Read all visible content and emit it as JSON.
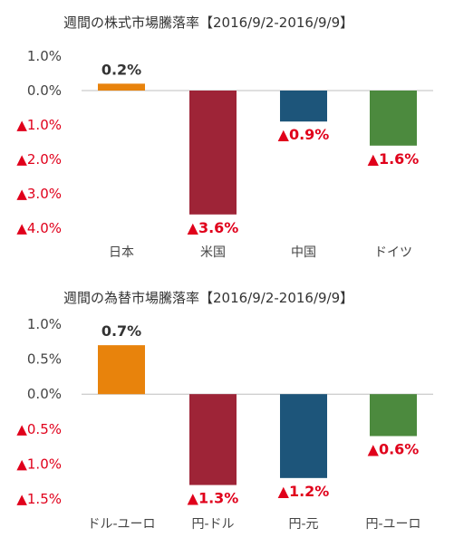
{
  "chart_data": [
    {
      "type": "bar",
      "title": "週間の株式市場騰落率【2016/9/2-2016/9/9】",
      "categories": [
        "日本",
        "米国",
        "中国",
        "ドイツ"
      ],
      "values": [
        0.2,
        -3.6,
        -0.9,
        -1.6
      ],
      "value_labels": [
        "0.2%",
        "▲3.6%",
        "▲0.9%",
        "▲1.6%"
      ],
      "colors": [
        "#E8830C",
        "#9E2437",
        "#1D557A",
        "#4C8A3E"
      ],
      "ylim": [
        -4.0,
        1.0
      ],
      "yticks": [
        1.0,
        0.0,
        -1.0,
        -2.0,
        -3.0,
        -4.0
      ],
      "ytick_labels": [
        "1.0%",
        "0.0%",
        "▲1.0%",
        "▲2.0%",
        "▲3.0%",
        "▲4.0%"
      ],
      "xlabel": "",
      "ylabel": "",
      "grid": false,
      "legend": "none"
    },
    {
      "type": "bar",
      "title": "週間の為替市場騰落率【2016/9/2-2016/9/9】",
      "categories": [
        "ドル-ユーロ",
        "円-ドル",
        "円-元",
        "円-ユーロ"
      ],
      "values": [
        0.7,
        -1.3,
        -1.2,
        -0.6
      ],
      "value_labels": [
        "0.7%",
        "▲1.3%",
        "▲1.2%",
        "▲0.6%"
      ],
      "colors": [
        "#E8830C",
        "#9E2437",
        "#1D557A",
        "#4C8A3E"
      ],
      "ylim": [
        -1.5,
        1.0
      ],
      "yticks": [
        1.0,
        0.5,
        0.0,
        -0.5,
        -1.0,
        -1.5
      ],
      "ytick_labels": [
        "1.0%",
        "0.5%",
        "0.0%",
        "▲0.5%",
        "▲1.0%",
        "▲1.5%"
      ],
      "xlabel": "",
      "ylabel": "",
      "grid": false,
      "legend": "none"
    }
  ],
  "colors": {
    "negative_text": "#E0001B",
    "positive_text": "#333333",
    "axis_text": "#444444",
    "zero_line": "#BFBFBF"
  }
}
